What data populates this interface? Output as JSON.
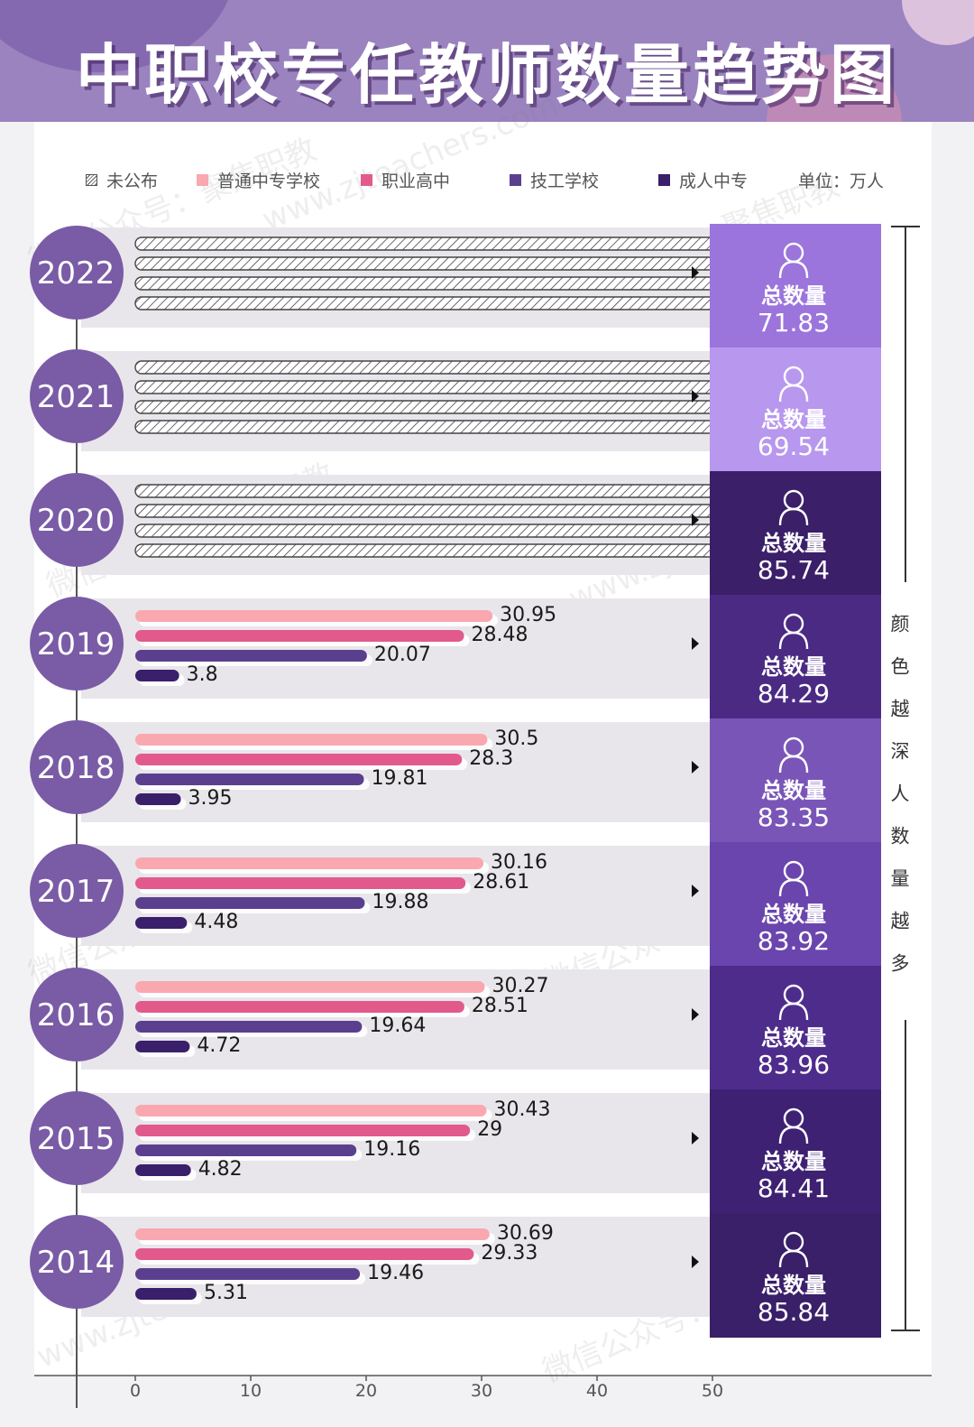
{
  "title": "中职校专任教师数量趋势图",
  "legend": {
    "items": [
      {
        "label": "未公布",
        "color": "hatch"
      },
      {
        "label": "普通中专学校",
        "color": "#f9a8b0"
      },
      {
        "label": "职业高中",
        "color": "#e25a8c"
      },
      {
        "label": "技工学校",
        "color": "#5b3f8f"
      },
      {
        "label": "成人中专",
        "color": "#3a1f6b"
      }
    ],
    "unit": "单位：万人"
  },
  "side_note": "颜色越深人数量越多",
  "total_label": "总数量",
  "watermarks": [
    "微信公众号：聚焦职教",
    "www.zjteachers.com"
  ],
  "chart_data": {
    "type": "bar",
    "orientation": "horizontal",
    "categories": [
      "2022",
      "2021",
      "2020",
      "2019",
      "2018",
      "2017",
      "2016",
      "2015",
      "2014"
    ],
    "series": [
      {
        "name": "普通中专学校",
        "color": "#f9a8b0",
        "values": [
          null,
          null,
          null,
          30.95,
          30.5,
          30.16,
          30.27,
          30.43,
          30.69
        ]
      },
      {
        "name": "职业高中",
        "color": "#e25a8c",
        "values": [
          null,
          null,
          null,
          28.48,
          28.3,
          28.61,
          28.51,
          29,
          29.33
        ]
      },
      {
        "name": "技工学校",
        "color": "#5b3f8f",
        "values": [
          null,
          null,
          null,
          20.07,
          19.81,
          19.88,
          19.64,
          19.16,
          19.46
        ]
      },
      {
        "name": "成人中专",
        "color": "#3a1f6b",
        "values": [
          null,
          null,
          null,
          3.8,
          3.95,
          4.48,
          4.72,
          4.82,
          5.31
        ]
      }
    ],
    "value_labels": [
      [
        null,
        null,
        null,
        null
      ],
      [
        null,
        null,
        null,
        null
      ],
      [
        null,
        null,
        null,
        null
      ],
      [
        "30.95",
        "28.48",
        "20.07",
        "3.8"
      ],
      [
        "30.5",
        "28.3",
        "19.81",
        "3.95"
      ],
      [
        "30.16",
        "28.61",
        "19.88",
        "4.48"
      ],
      [
        "30.27",
        "28.51",
        "19.64",
        "4.72"
      ],
      [
        "30.43",
        "29",
        "19.16",
        "4.82"
      ],
      [
        "30.69",
        "29.33",
        "19.46",
        "5.31"
      ]
    ],
    "unpublished": [
      true,
      true,
      true,
      false,
      false,
      false,
      false,
      false,
      false
    ],
    "totals": [
      "71.83",
      "69.54",
      "85.74",
      "84.29",
      "83.35",
      "83.92",
      "83.96",
      "84.41",
      "85.84"
    ],
    "total_colors": [
      "#9b74dc",
      "#b897ee",
      "#3b1f69",
      "#4b2a84",
      "#7a55b8",
      "#6a45ad",
      "#4e2c8c",
      "#3e2173",
      "#3a1f69"
    ],
    "x_ticks": [
      "0",
      "10",
      "20",
      "30",
      "40",
      "50"
    ],
    "xlim": [
      0,
      50
    ]
  }
}
